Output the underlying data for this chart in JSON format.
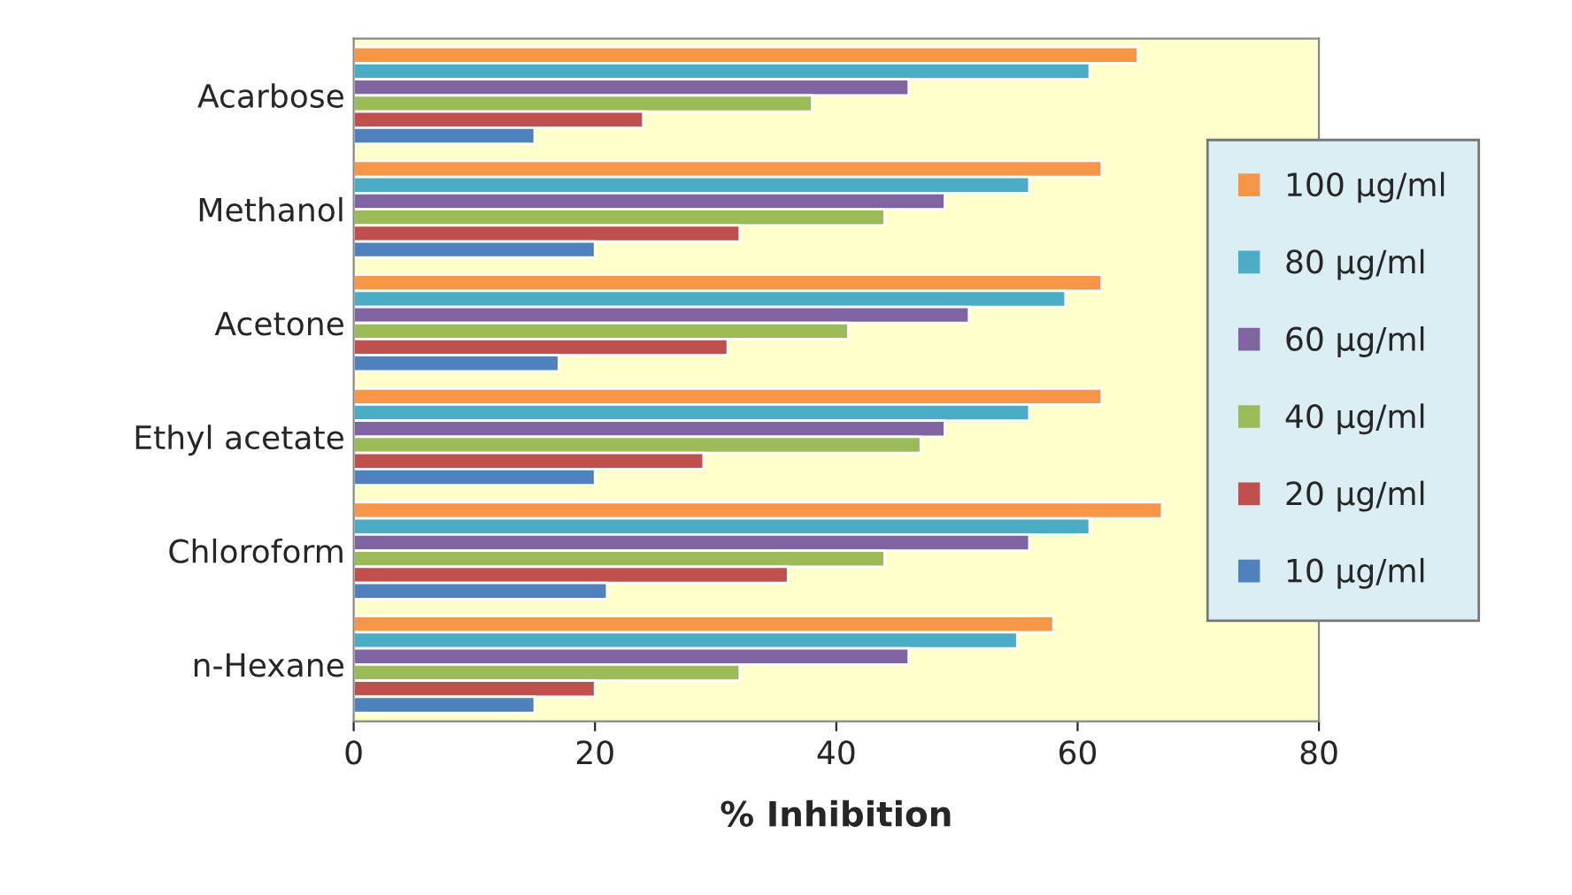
{
  "chart_data": {
    "type": "bar",
    "orientation": "horizontal",
    "xlabel": "% Inhibition",
    "categories": [
      "Acarbose",
      "Methanol",
      "Acetone",
      "Ethyl acetate",
      "Chloroform",
      "n-Hexane"
    ],
    "series": [
      {
        "name": "100 µg/ml",
        "color": "#f79646",
        "values": [
          65,
          62,
          62,
          62,
          67,
          58
        ]
      },
      {
        "name": "80 µg/ml",
        "color": "#4bacc6",
        "values": [
          61,
          56,
          59,
          56,
          61,
          55
        ]
      },
      {
        "name": "60 µg/ml",
        "color": "#8064a2",
        "values": [
          46,
          49,
          51,
          49,
          56,
          46
        ]
      },
      {
        "name": "40 µg/ml",
        "color": "#9bbb59",
        "values": [
          38,
          44,
          41,
          47,
          44,
          32
        ]
      },
      {
        "name": "20 µg/ml",
        "color": "#c0504d",
        "values": [
          24,
          32,
          31,
          29,
          36,
          20
        ]
      },
      {
        "name": "10 µg/ml",
        "color": "#4f81bd",
        "values": [
          15,
          20,
          17,
          20,
          21,
          15
        ]
      }
    ],
    "xlim": [
      0,
      80
    ],
    "xticks": [
      0,
      20,
      40,
      60,
      80
    ],
    "grid": false,
    "legend": "right"
  }
}
